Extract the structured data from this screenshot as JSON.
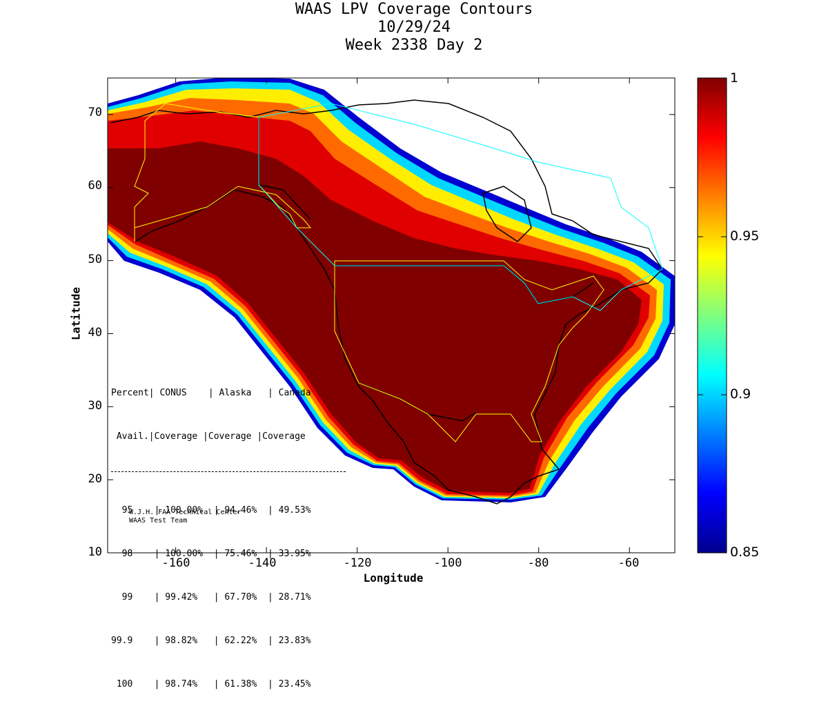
{
  "title": {
    "line1": "WAAS LPV Coverage Contours",
    "line2": "10/29/24",
    "line3": "Week 2338 Day 2"
  },
  "axes": {
    "xlabel": "Longitude",
    "ylabel": "Latitude",
    "xlim": [
      -175,
      -50
    ],
    "ylim": [
      10,
      75
    ],
    "xticks": [
      "-160",
      "-140",
      "-120",
      "-100",
      "-80",
      "-60"
    ],
    "yticks": [
      "70",
      "60",
      "50",
      "40",
      "30",
      "20",
      "10"
    ]
  },
  "colorbar": {
    "range": [
      0.85,
      1
    ],
    "labels": [
      "1",
      "0.95",
      "0.9",
      "0.85"
    ],
    "colormap": "jet"
  },
  "stats": {
    "header1": "Percent| CONUS    | Alaska   | Canada",
    "header2": " Avail.|Coverage |Coverage |Coverage",
    "rows": [
      "  95    | 100.00%  | 94.46%  | 49.53%",
      "  98    | 100.00%  | 75.46%  | 33.95%",
      "  99    | 99.42%   | 67.70%  | 28.71%",
      "99.9    | 98.82%   | 62.22%  | 23.83%",
      " 100    | 98.74%   | 61.38%  | 23.45%"
    ]
  },
  "credit": {
    "line1": "W.J.H. FAA Technical Center",
    "line2": "WAAS Test Team"
  },
  "colors": {
    "full_coverage": "#800000",
    "coastline": "#000000",
    "alaska_boundary": "#ffff00",
    "canada_boundary": "#00ffff"
  }
}
